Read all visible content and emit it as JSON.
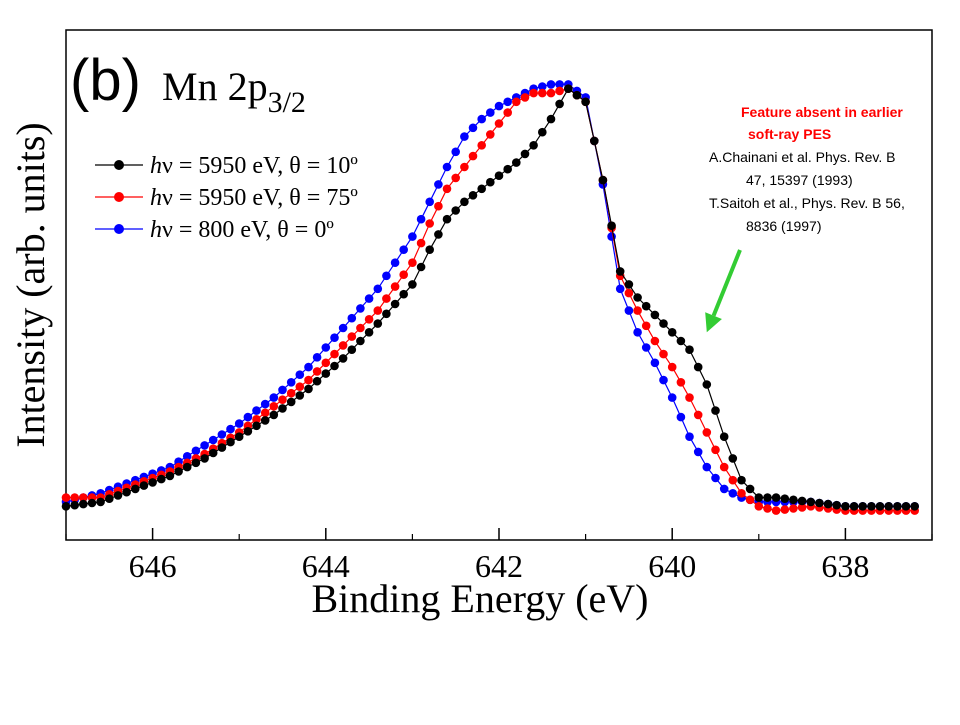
{
  "chart_data": {
    "type": "scatter",
    "panel_label": "(b)",
    "title": "Mn 2p3/2",
    "title_main": "Mn 2p",
    "title_sub": "3/2",
    "xlabel": "Binding Energy (eV)",
    "ylabel": "Intensity (arb. units)",
    "xlim": [
      647.0,
      637.0
    ],
    "ylim": [
      0.0,
      1.0
    ],
    "x_reversed": true,
    "y_ticks_labeled": false,
    "xticks": [
      "646",
      "644",
      "642",
      "640",
      "638"
    ],
    "grid": false,
    "legend_position": "upper-left",
    "series": [
      {
        "name": "hν = 5950 eV, θ = 10º",
        "legend": {
          "prefix": "h",
          "nu": "ν",
          "mid": " = 5950 eV, ",
          "theta": "θ",
          "tail": " = 10º"
        },
        "color": "#000000",
        "x": [
          647.0,
          646.6,
          646.2,
          645.8,
          645.4,
          645.0,
          644.6,
          644.2,
          643.8,
          643.4,
          643.0,
          642.8,
          642.6,
          642.4,
          642.2,
          642.0,
          641.8,
          641.6,
          641.4,
          641.2,
          641.0,
          640.8,
          640.6,
          640.4,
          640.2,
          640.0,
          639.8,
          639.6,
          639.4,
          639.2,
          639.0,
          638.8,
          638.4,
          638.0,
          637.6,
          637.2
        ],
        "y": [
          0.02,
          0.03,
          0.06,
          0.09,
          0.13,
          0.18,
          0.23,
          0.29,
          0.36,
          0.44,
          0.53,
          0.61,
          0.68,
          0.72,
          0.75,
          0.78,
          0.81,
          0.85,
          0.91,
          0.98,
          0.95,
          0.77,
          0.56,
          0.5,
          0.46,
          0.42,
          0.38,
          0.3,
          0.18,
          0.08,
          0.04,
          0.04,
          0.03,
          0.02,
          0.02,
          0.02
        ]
      },
      {
        "name": "hν = 5950 eV, θ = 75º",
        "legend": {
          "prefix": "h",
          "nu": "ν",
          "mid": " = 5950 eV, ",
          "theta": "θ",
          "tail": " = 75º"
        },
        "color": "#ff0000",
        "x": [
          647.0,
          646.6,
          646.2,
          645.8,
          645.4,
          645.0,
          644.6,
          644.2,
          643.8,
          643.4,
          643.0,
          642.8,
          642.6,
          642.4,
          642.2,
          642.0,
          641.8,
          641.6,
          641.4,
          641.2,
          641.0,
          640.8,
          640.6,
          640.4,
          640.2,
          640.0,
          639.8,
          639.6,
          639.4,
          639.2,
          639.0,
          638.8,
          638.4,
          638.0,
          637.6,
          637.2
        ],
        "y": [
          0.04,
          0.04,
          0.07,
          0.1,
          0.14,
          0.19,
          0.25,
          0.31,
          0.39,
          0.47,
          0.58,
          0.67,
          0.75,
          0.8,
          0.85,
          0.9,
          0.95,
          0.97,
          0.97,
          0.98,
          0.95,
          0.77,
          0.55,
          0.47,
          0.4,
          0.34,
          0.27,
          0.19,
          0.11,
          0.05,
          0.02,
          0.01,
          0.02,
          0.01,
          0.01,
          0.01
        ]
      },
      {
        "name": "hν = 800 eV, θ = 0º",
        "legend": {
          "prefix": "h",
          "nu": "ν",
          "mid": " = 800 eV, ",
          "theta": "θ",
          "tail": " = 0º"
        },
        "color": "#0000ff",
        "x": [
          647.0,
          646.6,
          646.2,
          645.8,
          645.4,
          645.0,
          644.6,
          644.2,
          643.8,
          643.4,
          643.0,
          642.8,
          642.6,
          642.4,
          642.2,
          642.0,
          641.8,
          641.6,
          641.4,
          641.2,
          641.0,
          640.8,
          640.6,
          640.4,
          640.2,
          640.0,
          639.8,
          639.6,
          639.4,
          639.2,
          639.0,
          638.8,
          638.4,
          638.0,
          637.6,
          637.2
        ],
        "y": [
          0.03,
          0.05,
          0.08,
          0.11,
          0.16,
          0.21,
          0.27,
          0.34,
          0.43,
          0.52,
          0.64,
          0.72,
          0.8,
          0.87,
          0.91,
          0.94,
          0.96,
          0.98,
          0.99,
          0.99,
          0.96,
          0.76,
          0.52,
          0.42,
          0.35,
          0.27,
          0.18,
          0.11,
          0.06,
          0.04,
          0.03,
          0.03,
          0.03,
          0.02,
          0.02,
          0.02
        ]
      }
    ],
    "annotation": {
      "headline": [
        "Feature absent in earlier",
        "soft-ray PES"
      ],
      "references": [
        "A.Chainani et al. Phys. Rev. B",
        "47, 15397 (1993)",
        "T.Saitoh et al., Phys. Rev. B 56,",
        "8836 (1997)"
      ],
      "headline_color": "#ff0000",
      "text_color": "#000000",
      "arrow_color": "#33cc33",
      "arrow_target": {
        "x": 639.6,
        "y": 0.42
      }
    }
  }
}
